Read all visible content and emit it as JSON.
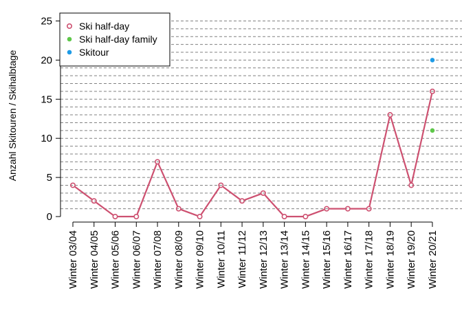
{
  "chart_data": {
    "type": "line",
    "title": "",
    "xlabel": "",
    "ylabel": "Anzahl Skitouren / Skihalbtage",
    "ylim": [
      0,
      25
    ],
    "y_ticks": [
      0,
      5,
      10,
      15,
      20,
      25
    ],
    "grid": "horizontal dashed lines at every integer from 1 to 25",
    "legend_position": "top-left",
    "categories": [
      "Winter 03/04",
      "Winter 04/05",
      "Winter 05/06",
      "Winter 06/07",
      "Winter 07/08",
      "Winter 08/09",
      "Winter 09/10",
      "Winter 10/11",
      "Winter 11/12",
      "Winter 12/13",
      "Winter 13/14",
      "Winter 14/15",
      "Winter 15/16",
      "Winter 16/17",
      "Winter 17/18",
      "Winter 18/19",
      "Winter 19/20",
      "Winter 20/21"
    ],
    "series": [
      {
        "name": "Ski half-day",
        "color": "#cd5070",
        "style": "line with open circles",
        "values": [
          4,
          2,
          0,
          0,
          7,
          1,
          0,
          4,
          2,
          3,
          0,
          0,
          1,
          1,
          1,
          13,
          4,
          16
        ]
      },
      {
        "name": "Ski half-day family",
        "color": "#5ec74a",
        "style": "filled point",
        "values": [
          null,
          null,
          null,
          null,
          null,
          null,
          null,
          null,
          null,
          null,
          null,
          null,
          null,
          null,
          null,
          null,
          null,
          11
        ]
      },
      {
        "name": "Skitour",
        "color": "#1e9be6",
        "style": "filled point",
        "values": [
          null,
          null,
          null,
          null,
          null,
          null,
          null,
          null,
          null,
          null,
          null,
          null,
          null,
          null,
          null,
          null,
          null,
          20
        ]
      }
    ]
  }
}
